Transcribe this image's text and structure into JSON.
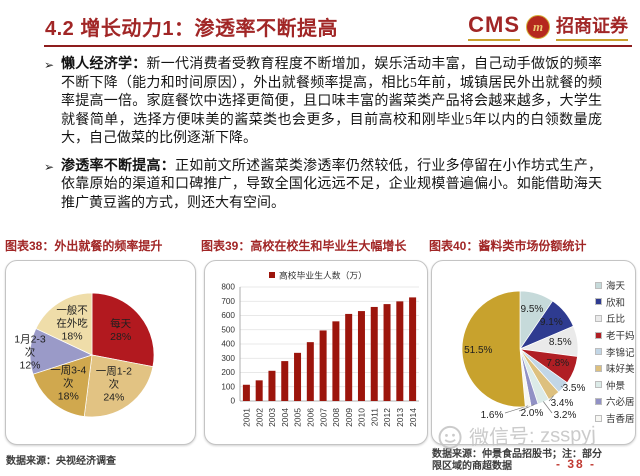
{
  "accent_color": "#a12626",
  "header": {
    "title": "4.2 增长动力1：渗透率不断提高",
    "logo_cms": "CMS",
    "logo_badge": "m",
    "logo_brand": "招商证券"
  },
  "bullets": {
    "marker": "➢",
    "items": [
      {
        "lead": "懒人经济学：",
        "text": "新一代消费者受教育程度不断增加，娱乐活动丰富，自己动手做饭的频率不断下降（能力和时间原因），外出就餐频率提高，相比5年前，城镇居民外出就餐的频率提高一倍。家庭餐饮中选择更简便，且口味丰富的酱菜类产品将会越来越多，大学生就餐简单，选择方便味美的酱菜类也会更多，目前高校和刚毕业5年以内的白领数量庞大，自己做菜的比例逐渐下降。"
      },
      {
        "lead": "渗透率不断提高：",
        "text": "正如前文所述酱菜类渗透率仍然较低，行业多停留在小作坊式生产，依靠原始的渠道和口碑推广，导致全国化远远不足，企业规模普遍偏小。如能借助海天推广黄豆酱的方式，则还大有空间。"
      }
    ]
  },
  "figures": {
    "fig1_caption": "图表38：外出就餐的频率提升",
    "fig2_caption": "图表39：高校在校生和毕业生大幅增长",
    "fig3_caption": "图表40：酱料类市场份额统计"
  },
  "chart_data": [
    {
      "type": "pie",
      "title": "外出就餐的频率提升",
      "slices": [
        {
          "label": "每天",
          "value": 28,
          "display": "28%",
          "color": "#b2191f"
        },
        {
          "label": "一周1-2\n次",
          "value": 24,
          "display": "24%",
          "color": "#e2c383"
        },
        {
          "label": "一周3-4\n次",
          "value": 18,
          "display": "18%",
          "color": "#d0a84e"
        },
        {
          "label": "1月2-3\n次",
          "value": 12,
          "display": "12%",
          "color": "#9a9ac8"
        },
        {
          "label": "一般不\n在外吃",
          "value": 18,
          "display": "18%",
          "color": "#efdda9"
        }
      ]
    },
    {
      "type": "bar",
      "title": "高校在校生和毕业生大幅增长",
      "legend": "高校毕业生人数（万）",
      "categories": [
        "2001",
        "2002",
        "2003",
        "2004",
        "2005",
        "2006",
        "2007",
        "2008",
        "2009",
        "2010",
        "2011",
        "2012",
        "2013",
        "2014"
      ],
      "values": [
        114,
        145,
        212,
        280,
        338,
        413,
        495,
        559,
        611,
        631,
        660,
        680,
        699,
        727
      ],
      "ylim": [
        0,
        800
      ],
      "ystep": 100,
      "bar_color": "#9c150c",
      "grid": true,
      "legend_position": "top"
    },
    {
      "type": "pie",
      "title": "酱料类市场份额统计",
      "slices": [
        {
          "label": "海天",
          "value": 9.5,
          "display": "9.5%",
          "color": "#c6dada"
        },
        {
          "label": "欣和",
          "value": 9.1,
          "display": "9.1%",
          "color": "#2e3b90"
        },
        {
          "label": "丘比",
          "value": 8.5,
          "display": "8.5%",
          "color": "#eaeaea"
        },
        {
          "label": "老干妈",
          "value": 7.8,
          "display": "7.8%",
          "color": "#b01e24"
        },
        {
          "label": "李锦记",
          "value": 3.5,
          "display": "3.5%",
          "color": "#c2d6e6"
        },
        {
          "label": "味好美",
          "value": 3.4,
          "display": "3.4%",
          "color": "#ddc07e"
        },
        {
          "label": "仲景",
          "value": 3.2,
          "display": "3.2%",
          "color": "#dcebe8"
        },
        {
          "label": "六必居",
          "value": 2.0,
          "display": "2.0%",
          "color": "#9191c5"
        },
        {
          "label": "吉香居",
          "value": 1.6,
          "display": "1.6%",
          "color": "#f7f7f3"
        },
        {
          "label": "",
          "value": 51.5,
          "display": "51.5%",
          "color": "#c8a22d",
          "in_legend": false
        }
      ]
    }
  ],
  "footer": {
    "left_source": "数据来源：央视经济调查",
    "right_source_line1": "数据来源：仲景食品招股书；注：部分",
    "right_source_line2": "限区域的商超数据",
    "page_number": "- 38 -"
  },
  "watermark": {
    "text": "微信号: zsspyj"
  }
}
